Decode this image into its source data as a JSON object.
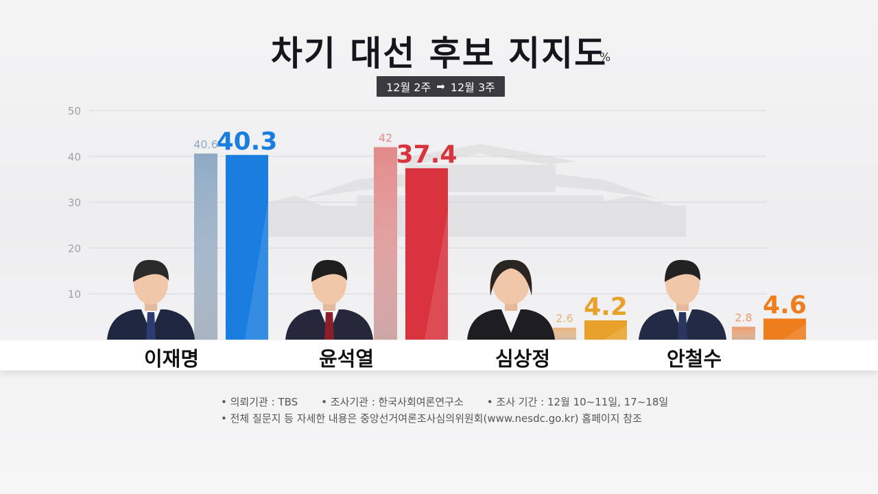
{
  "title": "차기 대선 후보 지지도",
  "unit": "%",
  "period": {
    "from": "12월 2주",
    "to": "12월 3주",
    "arrow": "➡"
  },
  "candidates": [
    {
      "name": "이재명",
      "x_center": 250
    },
    {
      "name": "윤석열",
      "x_center": 505
    },
    {
      "name": "심상정",
      "x_center": 762
    },
    {
      "name": "안철수",
      "x_center": 1012
    }
  ],
  "notes": {
    "client": "의뢰기관 : TBS",
    "agency": "조사기관 : 한국사회여론연구소",
    "dates": "조사 기간 : 12월 10~11일, 17~18일",
    "detail": "전체 질문지 등 자세한 내용은 중앙선거여론조사심의위원회(www.nesdc.go.kr) 홈페이지 참조"
  },
  "colors": {
    "lee_prev": "#8fa9c4",
    "lee_curr": "#1a7ee0",
    "yoon_prev": "#e28a8a",
    "yoon_curr": "#d9343d",
    "sim_prev": "#e8b27a",
    "sim_curr": "#e8a12a",
    "ahn_prev": "#ea9a6a",
    "ahn_curr": "#ee7d1d"
  },
  "chart_data": {
    "type": "bar",
    "title": "차기 대선 후보 지지도",
    "unit": "%",
    "categories": [
      "이재명",
      "윤석열",
      "심상정",
      "안철수"
    ],
    "series": [
      {
        "name": "12월 2주",
        "values": [
          40.6,
          42,
          2.6,
          2.8
        ]
      },
      {
        "name": "12월 3주",
        "values": [
          40.3,
          37.4,
          4.2,
          4.6
        ]
      }
    ],
    "y_ticks": [
      10,
      20,
      30,
      40,
      50
    ],
    "ylim": [
      0,
      50
    ],
    "grid": true
  }
}
